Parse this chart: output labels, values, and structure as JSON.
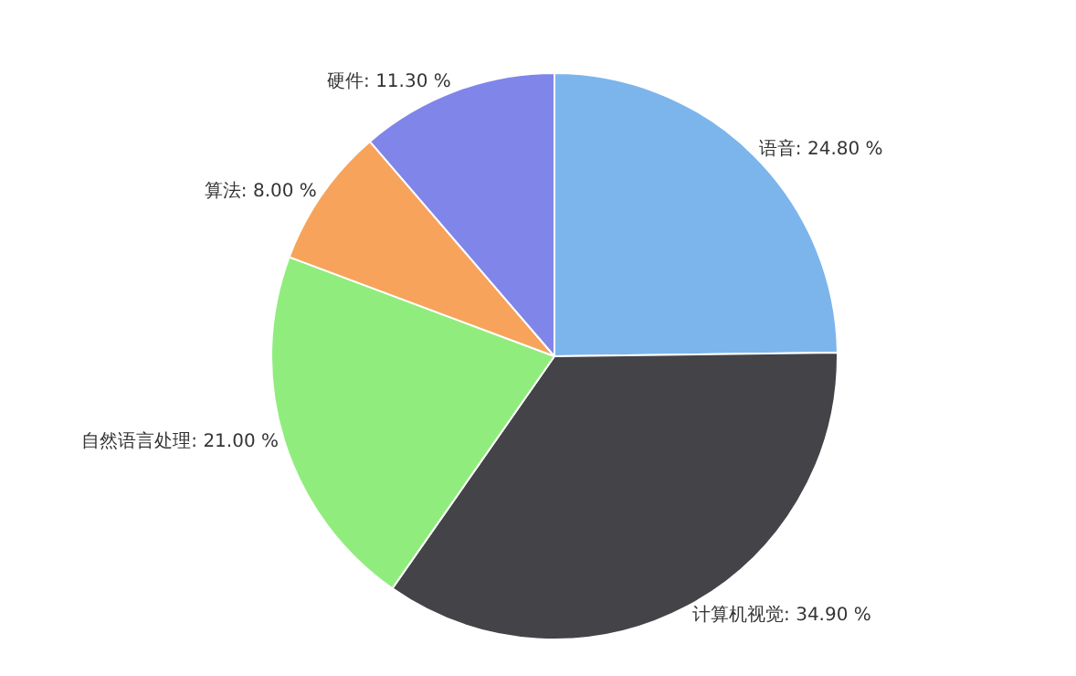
{
  "chart_data": {
    "type": "pie",
    "categories": [
      "语音",
      "计算机视觉",
      "自然语言处理",
      "算法",
      "硬件"
    ],
    "values": [
      24.8,
      34.9,
      21.0,
      8.0,
      11.3
    ],
    "value_labels": [
      "24.80 %",
      "34.90 %",
      "21.00 %",
      "8.00 %",
      "11.30 %"
    ],
    "colors": [
      "#7cb5ec",
      "#434348",
      "#90ed7d",
      "#f7a35c",
      "#8085e9"
    ],
    "legend": false
  }
}
